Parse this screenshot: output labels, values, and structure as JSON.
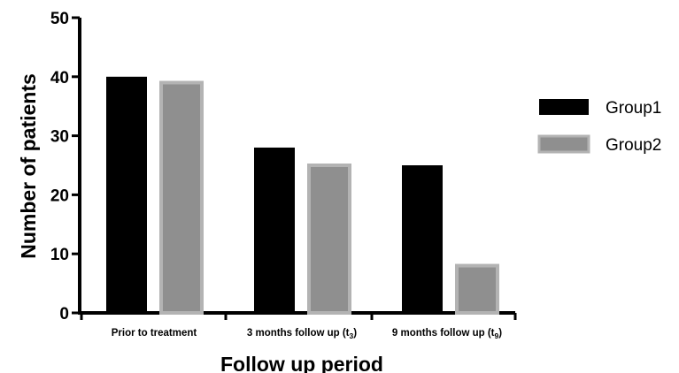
{
  "chart_data": {
    "type": "bar",
    "categories": [
      "Prior to treatment",
      "3 months follow up (t3)",
      "9 months follow up (t9)"
    ],
    "category_labels": [
      {
        "text": "Prior to treatment",
        "base": "Prior to treatment",
        "sub": "",
        "tail": ""
      },
      {
        "text": "3 months follow up (t3)",
        "base": "3 months follow up (t",
        "sub": "3",
        "tail": ")"
      },
      {
        "text": "9 months follow up (t9)",
        "base": "9 months follow up (t",
        "sub": "9",
        "tail": ")"
      }
    ],
    "series": [
      {
        "name": "Group1",
        "values": [
          40,
          28,
          25
        ],
        "color": "#000000"
      },
      {
        "name": "Group2",
        "values": [
          39,
          25,
          8
        ],
        "color": "#8f8f8f"
      }
    ],
    "xlabel": "Follow up period",
    "ylabel": "Number of patients",
    "ylim": [
      0,
      50
    ],
    "yticks": [
      0,
      10,
      20,
      30,
      40,
      50
    ],
    "grid": false,
    "legend_position": "right"
  }
}
